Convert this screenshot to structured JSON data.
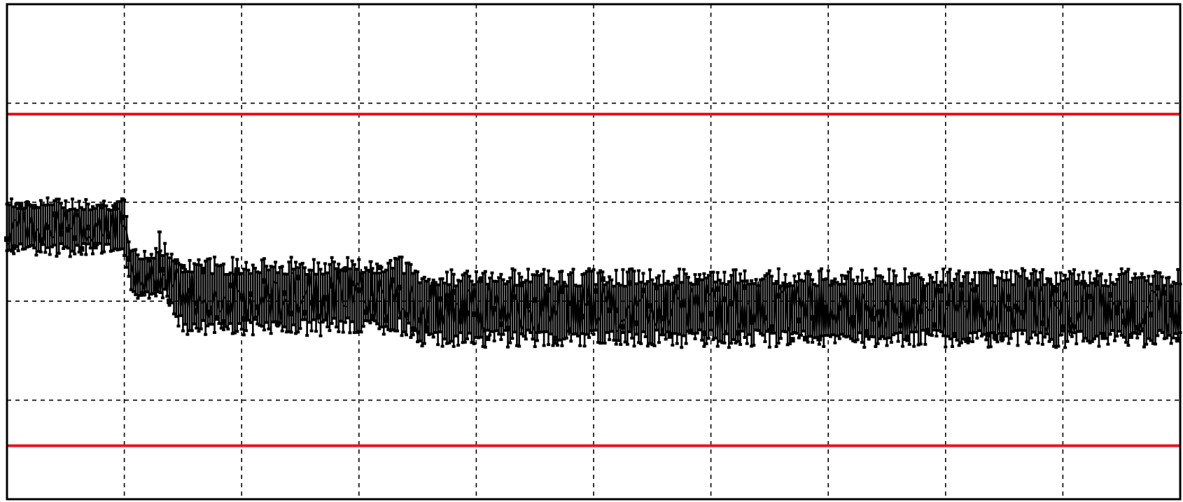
{
  "chart_data": {
    "type": "line",
    "title": "",
    "xlabel": "",
    "ylabel": "",
    "xlim": [
      0,
      10
    ],
    "ylim": [
      0,
      5
    ],
    "grid": true,
    "grid_style": "dashed",
    "x_divisions": 10,
    "y_divisions": 5,
    "colors": {
      "background": "#ffffff",
      "frame": "#000000",
      "grid": "#000000",
      "signal": "#000000",
      "limits": "#e8141b"
    },
    "limit_lines": [
      {
        "y": 3.89
      },
      {
        "y": 0.54
      }
    ],
    "series": [
      {
        "style": "noisy-band-with-markers",
        "x": [
          0.0,
          0.25,
          0.5,
          0.75,
          1.0,
          1.05,
          1.2,
          1.35,
          1.5,
          1.75,
          2.0,
          2.5,
          3.0,
          3.25,
          3.4,
          3.5,
          4.0,
          4.5,
          5.0,
          6.0,
          7.0,
          8.0,
          9.0,
          9.5,
          10.0
        ],
        "center": [
          2.75,
          2.75,
          2.75,
          2.75,
          2.75,
          2.3,
          2.25,
          2.3,
          2.05,
          2.05,
          2.05,
          2.05,
          2.05,
          2.05,
          2.05,
          1.93,
          1.93,
          1.93,
          1.93,
          1.93,
          1.93,
          1.93,
          1.93,
          1.93,
          1.93
        ],
        "half_range": [
          0.3,
          0.3,
          0.3,
          0.3,
          0.3,
          0.25,
          0.25,
          0.3,
          0.4,
          0.4,
          0.4,
          0.4,
          0.4,
          0.4,
          0.4,
          0.4,
          0.4,
          0.4,
          0.4,
          0.4,
          0.4,
          0.4,
          0.4,
          0.4,
          0.4
        ],
        "spikes": [
          {
            "x": 1.3,
            "y": 2.7
          },
          {
            "x": 3.1,
            "y": 2.4
          }
        ]
      }
    ]
  }
}
